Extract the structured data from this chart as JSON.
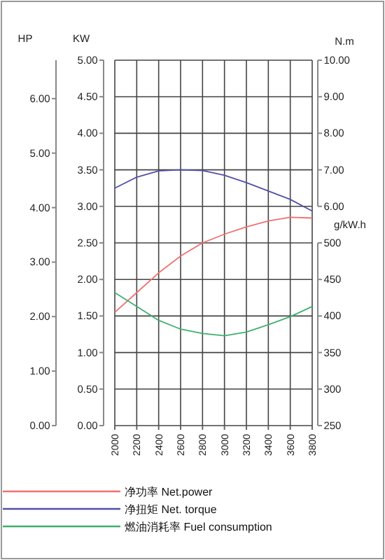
{
  "chart_data": {
    "type": "line",
    "x": [
      2000,
      2200,
      2400,
      2600,
      2800,
      3000,
      3200,
      3400,
      3600,
      3800
    ],
    "xlim": [
      2000,
      3800
    ],
    "xticks": [
      2000,
      2200,
      2400,
      2600,
      2800,
      3000,
      3200,
      3400,
      3600,
      3800
    ],
    "ylabel": "KW",
    "ylim": [
      0,
      5
    ],
    "yticks": [
      {
        "value": 0,
        "label": "0.00"
      },
      {
        "value": 0.5,
        "label": "0.50"
      },
      {
        "value": 1,
        "label": "1.00"
      },
      {
        "value": 1.5,
        "label": "1.50"
      },
      {
        "value": 2,
        "label": "2.00"
      },
      {
        "value": 2.5,
        "label": "2.50"
      },
      {
        "value": 3,
        "label": "3.00"
      },
      {
        "value": 3.5,
        "label": "3.50"
      },
      {
        "value": 4,
        "label": "4.00"
      },
      {
        "value": 4.5,
        "label": "4.50"
      },
      {
        "value": 5,
        "label": "5.00"
      }
    ],
    "y2label": "N.m",
    "y2lim": [
      0,
      10
    ],
    "y2ticks": [
      {
        "value": 6,
        "label": "6.00"
      },
      {
        "value": 7,
        "label": "7.00"
      },
      {
        "value": 8,
        "label": "8.00"
      },
      {
        "value": 9,
        "label": "9.00"
      },
      {
        "value": 10,
        "label": "10.00"
      }
    ],
    "y3label": "g/kW.h",
    "y3lim": [
      250,
      750
    ],
    "y3ticks": [
      250,
      300,
      350,
      400,
      450,
      500
    ],
    "annotations": [
      "HP",
      "0.00",
      "1.00",
      "2.00",
      "3.00",
      "4.00",
      "5.00",
      "6.00"
    ],
    "grid": true,
    "legend": "bottom",
    "series": [
      {
        "name": "净功率 Net.power",
        "color": "#f07070",
        "values": [
          1.55,
          1.82,
          2.09,
          2.32,
          2.5,
          2.62,
          2.72,
          2.8,
          2.85,
          2.84
        ]
      },
      {
        "name": "净扭矩 Net. torque",
        "color": "#5050a8",
        "axis": "y2",
        "values": [
          6.5,
          6.8,
          6.97,
          7.0,
          6.98,
          6.85,
          6.65,
          6.42,
          6.19,
          5.87
        ]
      },
      {
        "name": "燃油消耗率 Fuel consumption",
        "color": "#40b070",
        "axis": "y3",
        "values": [
          432,
          413,
          394,
          382,
          376,
          373,
          378,
          388,
          399,
          413
        ]
      }
    ]
  }
}
